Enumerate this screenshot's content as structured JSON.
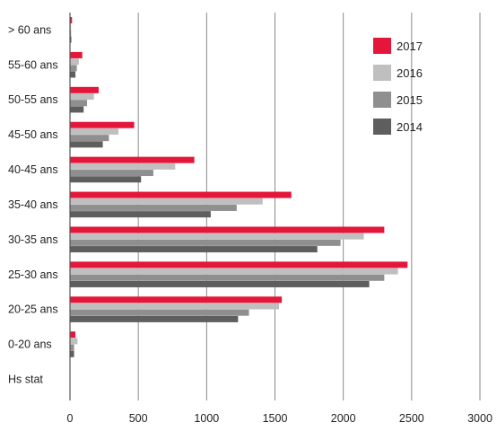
{
  "chart_data": {
    "type": "bar",
    "orientation": "horizontal",
    "title": "",
    "xlabel": "",
    "ylabel": "",
    "xlim": [
      0,
      3000
    ],
    "x_ticks": [
      "0",
      "500",
      "1000",
      "1500",
      "2000",
      "2500",
      "3000"
    ],
    "grid": "vertical",
    "legend_position": "top-right",
    "categories": [
      "> 60 ans",
      "55-60 ans",
      "50-55 ans",
      "45-50 ans",
      "40-45 ans",
      "35-40 ans",
      "30-35 ans",
      "25-30 ans",
      "20-25 ans",
      "0-20 ans",
      "Hs stat"
    ],
    "series": [
      {
        "name": "2017",
        "color": "#e4173a",
        "values": [
          15,
          90,
          210,
          470,
          910,
          1620,
          2300,
          2470,
          1550,
          40,
          0
        ]
      },
      {
        "name": "2016",
        "color": "#bfbfbf",
        "values": [
          8,
          65,
          175,
          355,
          770,
          1410,
          2150,
          2400,
          1530,
          55,
          0
        ]
      },
      {
        "name": "2015",
        "color": "#8f8f8f",
        "values": [
          8,
          50,
          125,
          285,
          610,
          1220,
          1980,
          2300,
          1310,
          30,
          0
        ]
      },
      {
        "name": "2014",
        "color": "#5e5e5e",
        "values": [
          10,
          40,
          100,
          240,
          520,
          1030,
          1810,
          2190,
          1230,
          30,
          0
        ]
      }
    ]
  }
}
